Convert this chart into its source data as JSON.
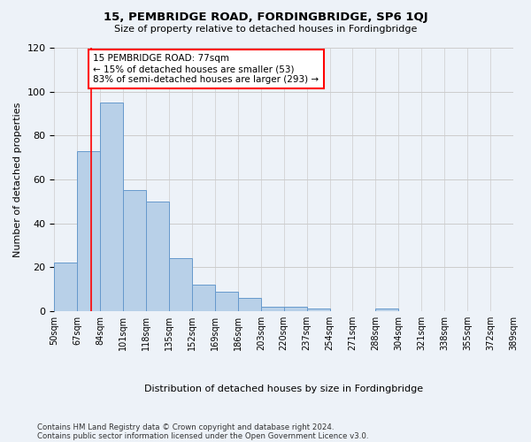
{
  "title": "15, PEMBRIDGE ROAD, FORDINGBRIDGE, SP6 1QJ",
  "subtitle": "Size of property relative to detached houses in Fordingbridge",
  "xlabel": "Distribution of detached houses by size in Fordingbridge",
  "ylabel": "Number of detached properties",
  "footer_line1": "Contains HM Land Registry data © Crown copyright and database right 2024.",
  "footer_line2": "Contains public sector information licensed under the Open Government Licence v3.0.",
  "bin_labels": [
    "50sqm",
    "67sqm",
    "84sqm",
    "101sqm",
    "118sqm",
    "135sqm",
    "152sqm",
    "169sqm",
    "186sqm",
    "203sqm",
    "220sqm",
    "237sqm",
    "254sqm",
    "271sqm",
    "288sqm",
    "304sqm",
    "321sqm",
    "338sqm",
    "355sqm",
    "372sqm",
    "389sqm"
  ],
  "bar_values": [
    22,
    73,
    95,
    55,
    50,
    24,
    12,
    9,
    6,
    2,
    2,
    1,
    0,
    0,
    1,
    0,
    0,
    0,
    0,
    0
  ],
  "bar_color": "#b8d0e8",
  "bar_edge_color": "#6699cc",
  "property_line_x": 1.6,
  "annotation_text": "15 PEMBRIDGE ROAD: 77sqm\n← 15% of detached houses are smaller (53)\n83% of semi-detached houses are larger (293) →",
  "annotation_box_color": "white",
  "annotation_box_edge_color": "red",
  "red_line_color": "red",
  "ylim": [
    0,
    120
  ],
  "yticks": [
    0,
    20,
    40,
    60,
    80,
    100,
    120
  ],
  "grid_color": "#cccccc",
  "background_color": "#edf2f8"
}
